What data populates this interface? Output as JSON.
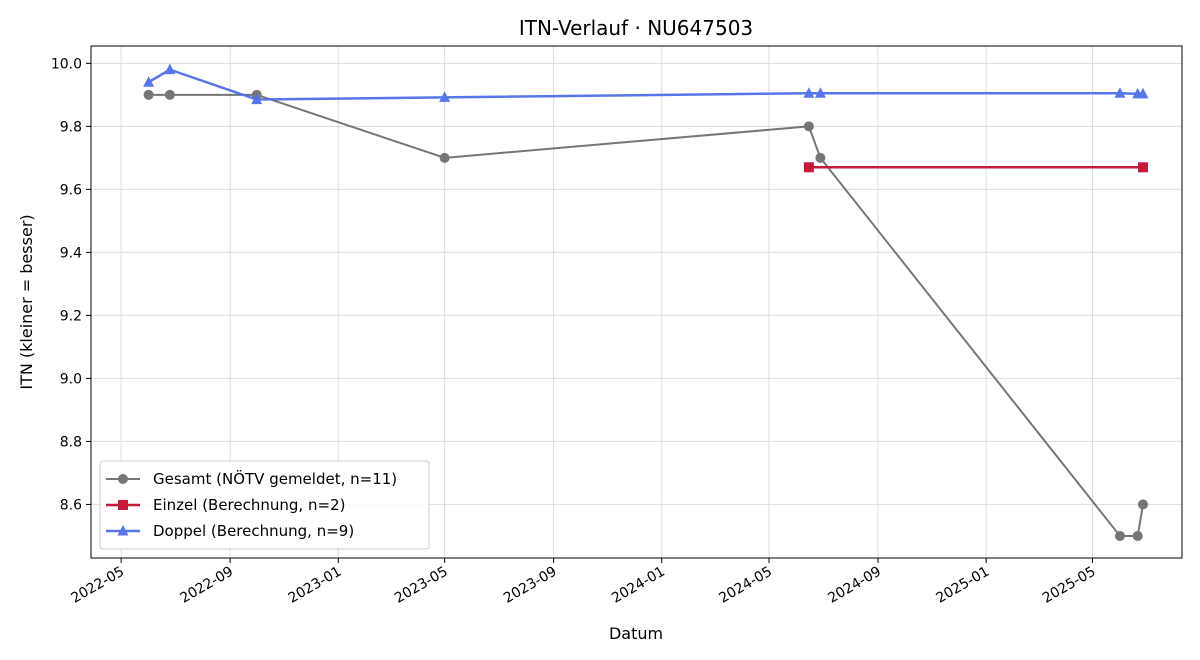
{
  "chart_data": {
    "type": "line",
    "title": "ITN-Verlauf · NU647503",
    "xlabel": "Datum",
    "ylabel": "ITN  (kleiner = besser)",
    "x_ticks": [
      "2022-05",
      "2022-09",
      "2023-01",
      "2023-05",
      "2023-09",
      "2024-01",
      "2024-05",
      "2024-09",
      "2025-01",
      "2025-05"
    ],
    "y_ticks": [
      "8.6",
      "8.8",
      "9.0",
      "9.2",
      "9.4",
      "9.6",
      "9.8",
      "10.0"
    ],
    "xlim": [
      "2022-03-28",
      "2025-08-10"
    ],
    "ylim": [
      8.43,
      10.055
    ],
    "grid": true,
    "legend_position": "lower-left",
    "series": [
      {
        "name": "Gesamt (NÖTV gemeldet, n=11)",
        "color": "#555555",
        "marker": "circle",
        "points": [
          [
            "2022-06-01",
            9.9
          ],
          [
            "2022-06-25",
            9.9
          ],
          [
            "2022-10-01",
            9.9
          ],
          [
            "2023-05-01",
            9.7
          ],
          [
            "2024-06-15",
            9.8
          ],
          [
            "2024-06-28",
            9.7
          ],
          [
            "2025-06-01",
            8.5
          ],
          [
            "2025-06-21",
            8.5
          ],
          [
            "2025-06-27",
            8.6
          ]
        ]
      },
      {
        "name": "Einzel (Berechnung, n=2)",
        "color": "#c8193c",
        "marker": "square",
        "points": [
          [
            "2024-06-15",
            9.67
          ],
          [
            "2025-06-27",
            9.67
          ]
        ]
      },
      {
        "name": "Doppel (Berechnung, n=9)",
        "color": "#4f6fe8",
        "marker": "triangle",
        "points": [
          [
            "2022-06-01",
            9.94
          ],
          [
            "2022-06-25",
            9.98
          ],
          [
            "2022-10-01",
            9.885
          ],
          [
            "2023-05-01",
            9.892
          ],
          [
            "2024-06-15",
            9.905
          ],
          [
            "2024-06-28",
            9.905
          ],
          [
            "2025-06-01",
            9.905
          ],
          [
            "2025-06-21",
            9.903
          ],
          [
            "2025-06-27",
            9.903
          ]
        ]
      }
    ]
  }
}
